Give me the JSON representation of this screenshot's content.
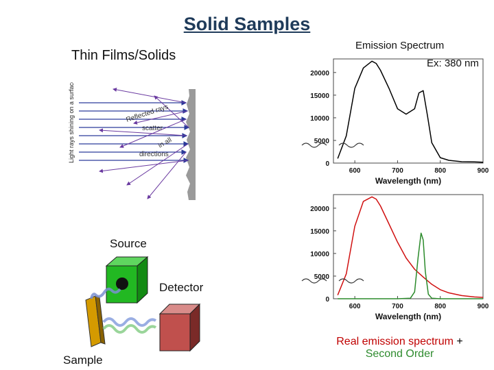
{
  "slide": {
    "title": "Solid Samples",
    "left_heading": "Thin Films/Solids",
    "scatter_figure": {
      "label_side": "Light rays shining on a surface",
      "label_reflected": "Reflected rays",
      "label_scatter": "scatter",
      "label_in_all": "in all",
      "label_directions": "directions"
    },
    "setup_figure": {
      "source_label": "Source",
      "detector_label": "Detector",
      "sample_label": "Sample",
      "colors": {
        "source_cube": "#22b822",
        "detector_cube": "#c0504d",
        "sample_plate": "#d49a00"
      }
    },
    "right_heading": "Emission Spectrum",
    "excitation_label": "Ex: 380 nm",
    "caption": {
      "red_part": "Real emission spectrum",
      "plus": " +",
      "green_part": "Second Order",
      "colors": {
        "red": "#c00000",
        "green": "#2e8b2e"
      }
    }
  },
  "chart_data": [
    {
      "type": "line",
      "xlabel": "Wavelength (nm)",
      "ylabel": "",
      "xlim": [
        550,
        900
      ],
      "ylim": [
        0,
        23000
      ],
      "x_ticks": [
        600,
        700,
        800,
        900
      ],
      "y_ticks": [
        0,
        5000,
        10000,
        15000,
        20000
      ],
      "series": [
        {
          "color": "#000000",
          "x": [
            560,
            580,
            600,
            620,
            640,
            650,
            660,
            680,
            700,
            720,
            740,
            750,
            760,
            770,
            780,
            800,
            820,
            850,
            880,
            900
          ],
          "y": [
            1000,
            6000,
            16500,
            21000,
            22500,
            22000,
            20500,
            16500,
            12000,
            10800,
            12000,
            15500,
            16000,
            10500,
            4500,
            1200,
            600,
            300,
            250,
            200
          ]
        }
      ]
    },
    {
      "type": "line",
      "xlabel": "Wavelength (nm)",
      "ylabel": "",
      "xlim": [
        550,
        900
      ],
      "ylim": [
        0,
        23000
      ],
      "x_ticks": [
        600,
        700,
        800,
        900
      ],
      "y_ticks": [
        0,
        5000,
        10000,
        15000,
        20000
      ],
      "series": [
        {
          "color": "#d01010",
          "x": [
            560,
            580,
            600,
            620,
            640,
            650,
            660,
            680,
            700,
            720,
            740,
            760,
            780,
            800,
            820,
            850,
            880,
            900
          ],
          "y": [
            800,
            5500,
            16000,
            21500,
            22500,
            22000,
            20500,
            16500,
            12500,
            9000,
            6500,
            4800,
            3200,
            2000,
            1300,
            700,
            400,
            300
          ]
        },
        {
          "color": "#2a8a2a",
          "x": [
            560,
            700,
            730,
            740,
            748,
            755,
            760,
            765,
            772,
            780,
            800,
            900
          ],
          "y": [
            0,
            0,
            100,
            1500,
            9000,
            14500,
            13000,
            6000,
            1000,
            100,
            0,
            0
          ]
        }
      ]
    }
  ]
}
